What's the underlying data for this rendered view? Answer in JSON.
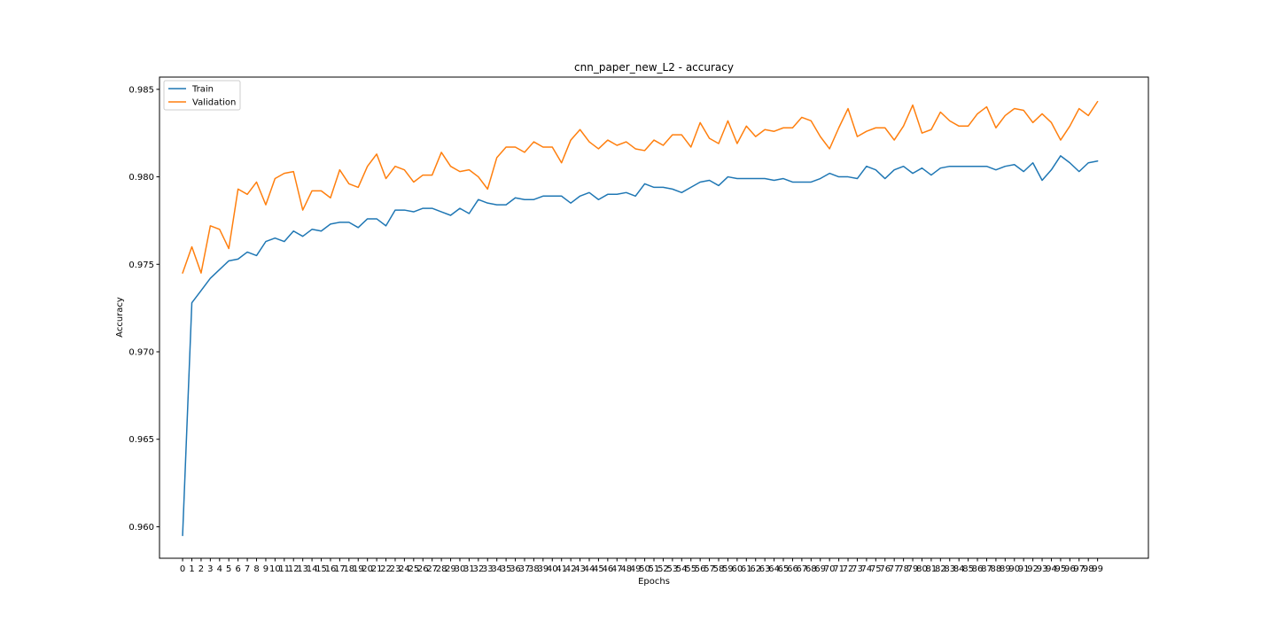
{
  "chart_data": {
    "type": "line",
    "title": "cnn_paper_new_L2 - accuracy",
    "xlabel": "Epochs",
    "ylabel": "Accuracy",
    "xlim": [
      -2.5,
      104.5
    ],
    "ylim": [
      0.9582,
      0.9857
    ],
    "yticks": [
      0.96,
      0.965,
      0.97,
      0.975,
      0.98,
      0.985
    ],
    "ytick_labels": [
      "0.960",
      "0.965",
      "0.970",
      "0.975",
      "0.980",
      "0.985"
    ],
    "grid": false,
    "legend_position": "upper-left",
    "x": [
      0,
      1,
      2,
      3,
      4,
      5,
      6,
      7,
      8,
      9,
      10,
      11,
      12,
      13,
      14,
      15,
      16,
      17,
      18,
      19,
      20,
      21,
      22,
      23,
      24,
      25,
      26,
      27,
      28,
      29,
      30,
      31,
      32,
      33,
      34,
      35,
      36,
      37,
      38,
      39,
      40,
      41,
      42,
      43,
      44,
      45,
      46,
      47,
      48,
      49,
      50,
      51,
      52,
      53,
      54,
      55,
      56,
      57,
      58,
      59,
      60,
      61,
      62,
      63,
      64,
      65,
      66,
      67,
      68,
      69,
      70,
      71,
      72,
      73,
      74,
      75,
      76,
      77,
      78,
      79,
      80,
      81,
      82,
      83,
      84,
      85,
      86,
      87,
      88,
      89,
      90,
      91,
      92,
      93,
      94,
      95,
      96,
      97,
      98,
      99
    ],
    "series": [
      {
        "name": "Train",
        "color": "#1f77b4",
        "values": [
          0.9595,
          0.9728,
          0.9735,
          0.9742,
          0.9747,
          0.9752,
          0.9753,
          0.9757,
          0.9755,
          0.9763,
          0.9765,
          0.9763,
          0.9769,
          0.9766,
          0.977,
          0.9769,
          0.9773,
          0.9774,
          0.9774,
          0.9771,
          0.9776,
          0.9776,
          0.9772,
          0.9781,
          0.9781,
          0.978,
          0.9782,
          0.9782,
          0.978,
          0.9778,
          0.9782,
          0.9779,
          0.9787,
          0.9785,
          0.9784,
          0.9784,
          0.9788,
          0.9787,
          0.9787,
          0.9789,
          0.9789,
          0.9789,
          0.9785,
          0.9789,
          0.9791,
          0.9787,
          0.979,
          0.979,
          0.9791,
          0.9789,
          0.9796,
          0.9794,
          0.9794,
          0.9793,
          0.9791,
          0.9794,
          0.9797,
          0.9798,
          0.9795,
          0.98,
          0.9799,
          0.9799,
          0.9799,
          0.9799,
          0.9798,
          0.9799,
          0.9797,
          0.9797,
          0.9797,
          0.9799,
          0.9802,
          0.98,
          0.98,
          0.9799,
          0.9806,
          0.9804,
          0.9799,
          0.9804,
          0.9806,
          0.9802,
          0.9805,
          0.9801,
          0.9805,
          0.9806,
          0.9806,
          0.9806,
          0.9806,
          0.9806,
          0.9804,
          0.9806,
          0.9807,
          0.9803,
          0.9808,
          0.9798,
          0.9804,
          0.9812,
          0.9808,
          0.9803,
          0.9808,
          0.9809
        ]
      },
      {
        "name": "Validation",
        "color": "#ff7f0e",
        "values": [
          0.9745,
          0.976,
          0.9745,
          0.9772,
          0.977,
          0.9759,
          0.9793,
          0.979,
          0.9797,
          0.9784,
          0.9799,
          0.9802,
          0.9803,
          0.9781,
          0.9792,
          0.9792,
          0.9788,
          0.9804,
          0.9796,
          0.9794,
          0.9806,
          0.9813,
          0.9799,
          0.9806,
          0.9804,
          0.9797,
          0.9801,
          0.9801,
          0.9814,
          0.9806,
          0.9803,
          0.9804,
          0.98,
          0.9793,
          0.9811,
          0.9817,
          0.9817,
          0.9814,
          0.982,
          0.9817,
          0.9817,
          0.9808,
          0.9821,
          0.9827,
          0.982,
          0.9816,
          0.9821,
          0.9818,
          0.982,
          0.9816,
          0.9815,
          0.9821,
          0.9818,
          0.9824,
          0.9824,
          0.9817,
          0.9831,
          0.9822,
          0.9819,
          0.9832,
          0.9819,
          0.9829,
          0.9823,
          0.9827,
          0.9826,
          0.9828,
          0.9828,
          0.9834,
          0.9832,
          0.9823,
          0.9816,
          0.9828,
          0.9839,
          0.9823,
          0.9826,
          0.9828,
          0.9828,
          0.9821,
          0.9829,
          0.9841,
          0.9825,
          0.9827,
          0.9837,
          0.9832,
          0.9829,
          0.9829,
          0.9836,
          0.984,
          0.9828,
          0.9835,
          0.9839,
          0.9838,
          0.9831,
          0.9836,
          0.9831,
          0.9821,
          0.9829,
          0.9839,
          0.9835,
          0.9843
        ]
      }
    ]
  }
}
